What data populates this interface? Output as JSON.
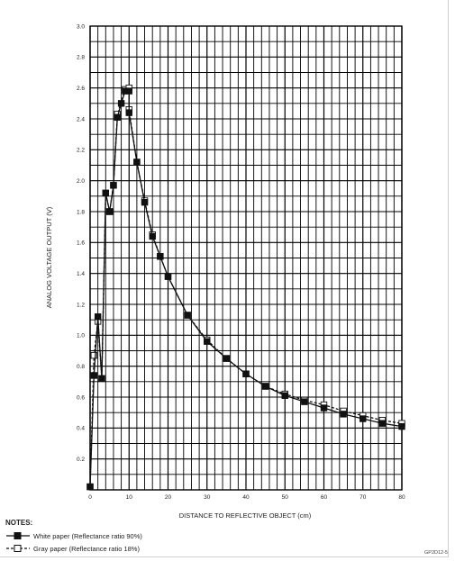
{
  "chart_data": {
    "type": "line",
    "xlabel": "DISTANCE TO REFLECTIVE OBJECT (cm)",
    "ylabel": "ANALOG VOLTAGE OUTPUT (V)",
    "xlim": [
      0,
      80
    ],
    "ylim": [
      0,
      3.0
    ],
    "x_ticks": [
      0,
      10,
      20,
      30,
      40,
      50,
      60,
      70,
      80
    ],
    "y_ticks": [
      0.2,
      0.4,
      0.6,
      0.8,
      1.0,
      1.2,
      1.4,
      1.6,
      1.8,
      2.0,
      2.2,
      2.4,
      2.6,
      2.8,
      3.0
    ],
    "x_tick_labels": [
      "0",
      "10",
      "20",
      "30",
      "40",
      "50",
      "60",
      "70",
      "80"
    ],
    "y_tick_labels": [
      "0.2",
      "0.4",
      "0.6",
      "0.8",
      "1.0",
      "1.2",
      "1.4",
      "1.6",
      "1.8",
      "2.0",
      "2.2",
      "2.4",
      "2.6",
      "2.8",
      "3.0"
    ],
    "grid": true,
    "legend_placement": "bottom-left",
    "series": [
      {
        "name": "White paper (Reflectance ratio 90%)",
        "marker": "filled-square",
        "line": "solid",
        "color": "#111111",
        "points": [
          [
            0,
            0.02
          ],
          [
            1,
            0.74
          ],
          [
            2,
            1.12
          ],
          [
            3,
            0.72
          ],
          [
            4,
            1.92
          ],
          [
            5,
            1.8
          ],
          [
            6,
            1.97
          ],
          [
            7,
            2.41
          ],
          [
            8,
            2.5
          ],
          [
            9,
            2.58
          ],
          [
            10,
            2.58
          ],
          [
            10,
            2.44
          ],
          [
            12,
            2.12
          ],
          [
            14,
            1.86
          ],
          [
            16,
            1.64
          ],
          [
            18,
            1.51
          ],
          [
            20,
            1.38
          ],
          [
            25,
            1.13
          ],
          [
            30,
            0.96
          ],
          [
            35,
            0.85
          ],
          [
            40,
            0.75
          ],
          [
            45,
            0.67
          ],
          [
            50,
            0.61
          ],
          [
            55,
            0.57
          ],
          [
            60,
            0.53
          ],
          [
            65,
            0.49
          ],
          [
            70,
            0.46
          ],
          [
            75,
            0.43
          ],
          [
            80,
            0.41
          ]
        ]
      },
      {
        "name": "Gray paper (Reflectance ratio 18%)",
        "marker": "open-square",
        "line": "dashed",
        "color": "#111111",
        "points": [
          [
            0,
            0.02
          ],
          [
            1,
            0.87
          ],
          [
            2,
            1.09
          ],
          [
            3,
            0.72
          ],
          [
            4,
            1.92
          ],
          [
            5,
            1.8
          ],
          [
            6,
            1.97
          ],
          [
            7,
            2.43
          ],
          [
            9,
            2.59
          ],
          [
            10,
            2.6
          ],
          [
            10,
            2.46
          ],
          [
            12,
            2.12
          ],
          [
            14,
            1.87
          ],
          [
            16,
            1.65
          ],
          [
            18,
            1.51
          ],
          [
            20,
            1.38
          ],
          [
            25,
            1.13
          ],
          [
            30,
            0.97
          ],
          [
            35,
            0.85
          ],
          [
            40,
            0.75
          ],
          [
            45,
            0.67
          ],
          [
            50,
            0.62
          ],
          [
            55,
            0.58
          ],
          [
            60,
            0.55
          ],
          [
            65,
            0.51
          ],
          [
            70,
            0.48
          ],
          [
            75,
            0.45
          ],
          [
            80,
            0.43
          ]
        ]
      }
    ]
  },
  "notes": {
    "title": "NOTES:",
    "white_label": "White paper (Reflectance ratio 90%)",
    "gray_label": "Gray paper (Reflectance ratio 18%)"
  },
  "footer": {
    "code": "GP2D12-5"
  }
}
